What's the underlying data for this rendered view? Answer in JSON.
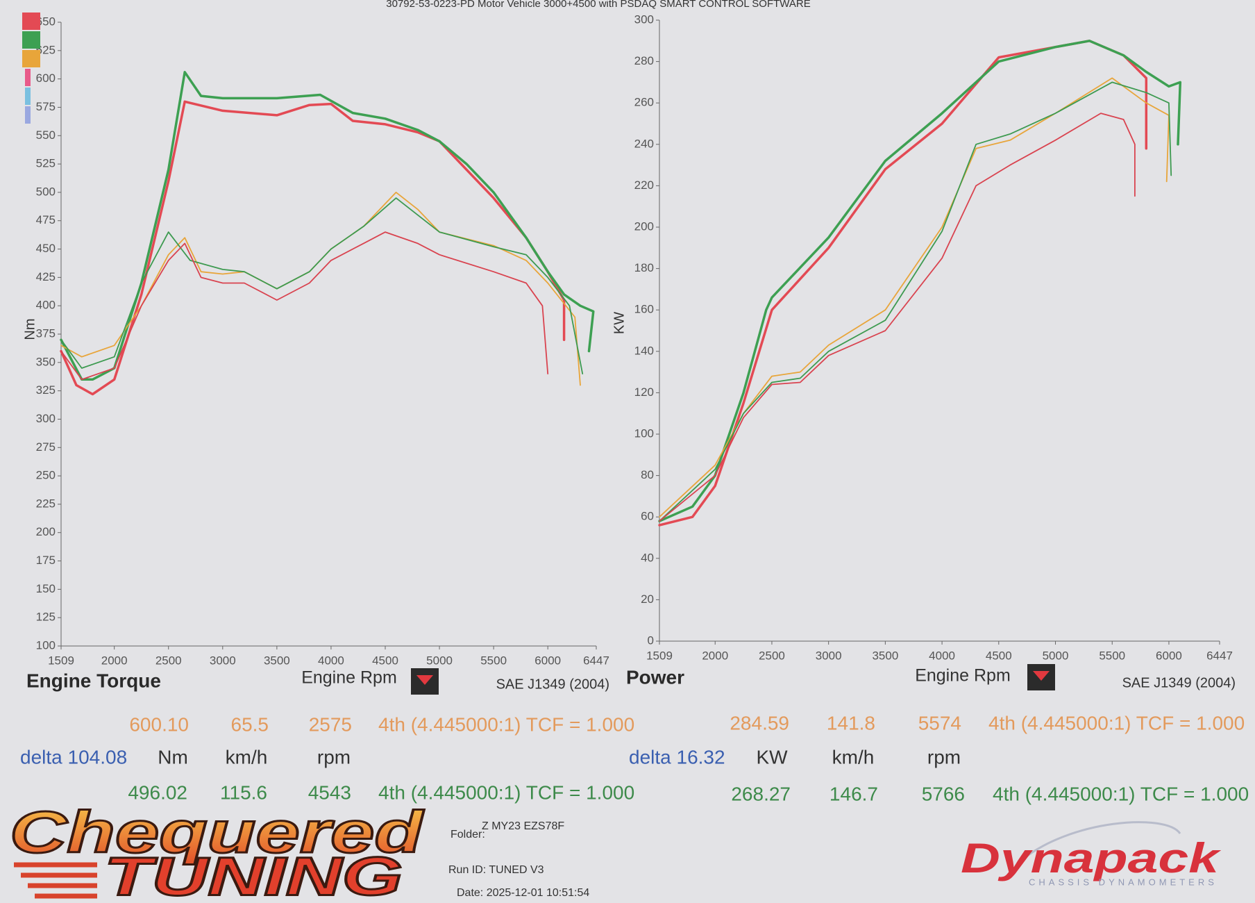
{
  "header": {
    "title": "30792-53-0223-PD Motor Vehicle 3000+4500 with PSDAQ SMART CONTROL SOFTWARE"
  },
  "chart_data": [
    {
      "type": "line",
      "title": "Engine Torque",
      "x_label": "Engine Rpm",
      "y_label": "Nm",
      "standard": "SAE J1349 (2004)",
      "xlim": [
        1509,
        6447
      ],
      "xticks": [
        1509,
        2000,
        2500,
        3000,
        3500,
        4000,
        4500,
        5000,
        5500,
        6000,
        6447
      ],
      "ylim": [
        100,
        650
      ],
      "yticks": [
        100,
        125,
        150,
        175,
        200,
        225,
        250,
        275,
        300,
        325,
        350,
        375,
        400,
        425,
        450,
        475,
        500,
        525,
        550,
        575,
        600,
        625,
        650
      ],
      "grid": false,
      "legend_colors": [
        "#e34a54",
        "#3da052",
        "#e8a53a",
        "#e85a8a",
        "#7ac0e0",
        "#9aa8e0"
      ],
      "series": [
        {
          "color": "#e34a54",
          "line_width": 3.5,
          "x": [
            1509,
            1650,
            1800,
            2000,
            2250,
            2500,
            2650,
            3000,
            3500,
            3800,
            4000,
            4200,
            4500,
            4800,
            5000,
            5500,
            5800,
            6000,
            6150,
            6150
          ],
          "values": [
            360,
            330,
            322,
            335,
            410,
            510,
            580,
            572,
            568,
            577,
            578,
            563,
            560,
            553,
            545,
            495,
            460,
            430,
            405,
            370
          ]
        },
        {
          "color": "#3da052",
          "line_width": 3.5,
          "x": [
            1509,
            1700,
            1800,
            2000,
            2250,
            2500,
            2650,
            2800,
            3000,
            3500,
            3900,
            4200,
            4500,
            4800,
            5000,
            5250,
            5500,
            5800,
            6000,
            6150,
            6300,
            6420,
            6380
          ],
          "values": [
            370,
            335,
            335,
            345,
            420,
            520,
            606,
            585,
            583,
            583,
            586,
            570,
            565,
            555,
            545,
            525,
            500,
            460,
            430,
            410,
            400,
            395,
            360
          ]
        },
        {
          "color": "#e8a53a",
          "line_width": 1.8,
          "x": [
            1509,
            1700,
            2000,
            2250,
            2500,
            2650,
            2800,
            3000,
            3200,
            3500,
            3800,
            4000,
            4300,
            4600,
            4800,
            5000,
            5500,
            5800,
            6000,
            6250,
            6300
          ],
          "values": [
            365,
            355,
            365,
            400,
            445,
            460,
            430,
            428,
            430,
            415,
            430,
            450,
            470,
            500,
            485,
            465,
            453,
            440,
            420,
            390,
            330
          ]
        },
        {
          "color": "#3d9a50",
          "line_width": 1.8,
          "x": [
            1509,
            1700,
            2000,
            2250,
            2500,
            2700,
            3000,
            3200,
            3500,
            3800,
            4000,
            4300,
            4600,
            5000,
            5500,
            5800,
            6000,
            6200,
            6320
          ],
          "values": [
            370,
            345,
            355,
            420,
            465,
            440,
            432,
            430,
            415,
            430,
            450,
            470,
            495,
            465,
            452,
            445,
            425,
            400,
            340
          ]
        },
        {
          "color": "#d9434f",
          "line_width": 1.8,
          "x": [
            1509,
            1700,
            2000,
            2250,
            2500,
            2650,
            2800,
            3000,
            3200,
            3500,
            3800,
            4000,
            4300,
            4500,
            4800,
            5000,
            5500,
            5800,
            5950,
            6000
          ],
          "values": [
            360,
            335,
            345,
            400,
            440,
            455,
            425,
            420,
            420,
            405,
            420,
            440,
            455,
            465,
            455,
            445,
            430,
            420,
            400,
            340
          ]
        }
      ],
      "readout": {
        "row1": [
          "600.10",
          "65.5",
          "2575",
          "4th (4.445000:1) TCF = 1.000"
        ],
        "delta": "delta 104.08",
        "units": [
          "Nm",
          "km/h",
          "rpm"
        ],
        "row2": [
          "496.02",
          "115.6",
          "4543",
          "4th (4.445000:1) TCF = 1.000"
        ]
      }
    },
    {
      "type": "line",
      "title": "Power",
      "x_label": "Engine Rpm",
      "y_label": "KW",
      "standard": "SAE J1349 (2004)",
      "xlim": [
        1509,
        6447
      ],
      "xticks": [
        1509,
        2000,
        2500,
        3000,
        3500,
        4000,
        4500,
        5000,
        5500,
        6000,
        6447
      ],
      "ylim": [
        0,
        300
      ],
      "yticks": [
        0,
        20,
        40,
        60,
        80,
        100,
        120,
        140,
        160,
        180,
        200,
        220,
        240,
        260,
        280,
        300
      ],
      "grid": false,
      "series": [
        {
          "color": "#e34a54",
          "line_width": 3.5,
          "x": [
            1509,
            1800,
            2000,
            2250,
            2500,
            3000,
            3500,
            4000,
            4500,
            5000,
            5300,
            5600,
            5800,
            5800
          ],
          "values": [
            56,
            60,
            75,
            115,
            160,
            190,
            228,
            250,
            282,
            287,
            290,
            283,
            272,
            238
          ]
        },
        {
          "color": "#3da052",
          "line_width": 3.5,
          "x": [
            1509,
            1800,
            2000,
            2250,
            2450,
            2500,
            3000,
            3500,
            4000,
            4500,
            5000,
            5300,
            5600,
            5800,
            6000,
            6100,
            6080
          ],
          "values": [
            58,
            65,
            80,
            120,
            160,
            166,
            195,
            232,
            255,
            280,
            287,
            290,
            283,
            275,
            268,
            270,
            240
          ]
        },
        {
          "color": "#e8a53a",
          "line_width": 1.8,
          "x": [
            1509,
            2000,
            2250,
            2500,
            2750,
            3000,
            3500,
            4000,
            4300,
            4600,
            5000,
            5500,
            5800,
            6000,
            5980
          ],
          "values": [
            60,
            85,
            110,
            128,
            130,
            143,
            160,
            200,
            238,
            242,
            255,
            272,
            260,
            254,
            222
          ]
        },
        {
          "color": "#3d9a50",
          "line_width": 1.8,
          "x": [
            1509,
            2000,
            2250,
            2500,
            2750,
            3000,
            3500,
            4000,
            4300,
            4600,
            5000,
            5500,
            5800,
            6000,
            6020
          ],
          "values": [
            58,
            83,
            110,
            125,
            127,
            140,
            155,
            198,
            240,
            245,
            255,
            270,
            265,
            260,
            225
          ]
        },
        {
          "color": "#d9434f",
          "line_width": 1.8,
          "x": [
            1509,
            2000,
            2250,
            2500,
            2750,
            3000,
            3500,
            4000,
            4300,
            4600,
            5000,
            5400,
            5600,
            5700,
            5700
          ],
          "values": [
            58,
            80,
            108,
            124,
            125,
            138,
            150,
            185,
            220,
            230,
            242,
            255,
            252,
            240,
            215
          ]
        }
      ],
      "readout": {
        "row1": [
          "284.59",
          "141.8",
          "5574",
          "4th (4.445000:1) TCF = 1.000"
        ],
        "delta": "delta 16.32",
        "units": [
          "KW",
          "km/h",
          "rpm"
        ],
        "row2": [
          "268.27",
          "146.7",
          "5766",
          "4th (4.445000:1) TCF = 1.000"
        ]
      }
    }
  ],
  "footer": {
    "logo_top": "Chequered",
    "logo_bottom": "TUNING",
    "folder_label": "Folder:",
    "folder": "Z MY23 EZS78F",
    "run_id": "Run ID: TUNED V3",
    "date": "Date: 2025-12-01 10:51:54",
    "brand": "Dynapack",
    "brand_sub": "CHASSIS DYNAMOMETERS"
  }
}
